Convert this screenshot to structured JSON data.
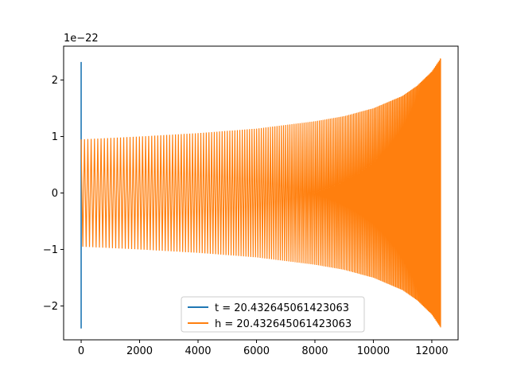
{
  "chart_data": {
    "type": "line",
    "title": "",
    "xlabel": "",
    "ylabel": "",
    "y_offset_text": "1e−22",
    "xlim": [
      -600,
      12900
    ],
    "ylim": [
      -2.6,
      2.6
    ],
    "x_ticks": [
      0,
      2000,
      4000,
      6000,
      8000,
      10000,
      12000
    ],
    "x_tick_labels": [
      "0",
      "2000",
      "4000",
      "6000",
      "8000",
      "10000",
      "12000"
    ],
    "y_ticks": [
      -2,
      -1,
      0,
      1,
      2
    ],
    "y_tick_labels": [
      "−2",
      "−1",
      "0",
      "1",
      "2"
    ],
    "grid": false,
    "legend_position": "lower center",
    "series": [
      {
        "name": "t = 20.432645061423063",
        "color": "#1f77b4",
        "style": "spike near x=0",
        "x": [
          0,
          0,
          0
        ],
        "y": [
          2.32,
          0,
          -2.4
        ]
      },
      {
        "name": "h = 20.432645061423063",
        "color": "#ff7f0e",
        "style": "chirp oscillation with growing envelope",
        "x_start": 0,
        "x_end": 12300,
        "envelope_x": [
          0,
          2000,
          4000,
          6000,
          8000,
          9000,
          10000,
          11000,
          11500,
          12000,
          12300
        ],
        "envelope_y": [
          0.95,
          1.0,
          1.06,
          1.14,
          1.27,
          1.36,
          1.5,
          1.72,
          1.9,
          2.15,
          2.38
        ]
      }
    ]
  }
}
